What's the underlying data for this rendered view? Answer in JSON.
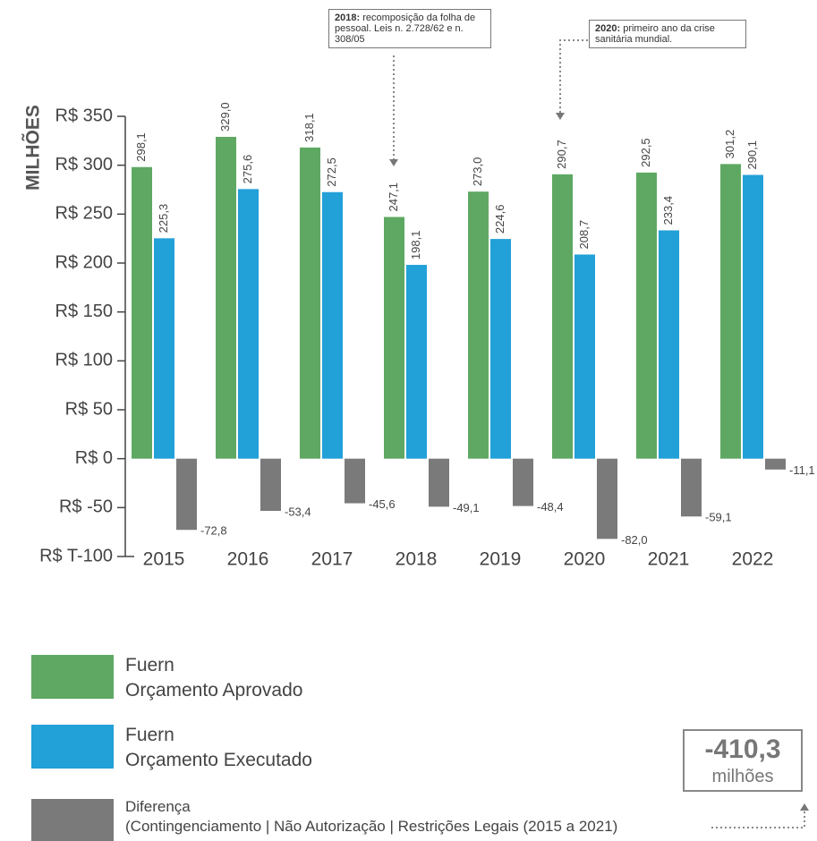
{
  "chart_data": {
    "type": "bar",
    "y_label": "MILHÕES",
    "categories": [
      "2015",
      "2016",
      "2017",
      "2018",
      "2019",
      "2020",
      "2021",
      "2022"
    ],
    "series": [
      {
        "name": "Fuern\nOrçamento Aprovado",
        "color": "#5fa863",
        "values": [
          298.1,
          329.0,
          318.1,
          247.1,
          273.0,
          290.7,
          292.5,
          301.2
        ],
        "value_labels": [
          "298,1",
          "329,0",
          "318,1",
          "247,1",
          "273,0",
          "290,7",
          "292,5",
          "301,2"
        ]
      },
      {
        "name": "Fuern\nOrçamento Executado",
        "color": "#22a0d8",
        "values": [
          225.3,
          275.6,
          272.5,
          198.1,
          224.6,
          208.7,
          233.4,
          290.1
        ],
        "value_labels": [
          "225,3",
          "275,6",
          "272,5",
          "198,1",
          "224,6",
          "208,7",
          "233,4",
          "290,1"
        ]
      },
      {
        "name": "Diferença\n(Contingenciamento | Não Autorização | Restrições Legais (2015 a 2021)",
        "color": "#7a7a7a",
        "values": [
          -72.8,
          -53.4,
          -45.6,
          -49.1,
          -48.4,
          -82.0,
          -59.1,
          -11.1
        ],
        "value_labels": [
          "-72,8",
          "-53,4",
          "-45,6",
          "-49,1",
          "-48,4",
          "-82,0",
          "-59,1",
          "-11,1"
        ]
      }
    ],
    "ylim": [
      -100,
      350
    ],
    "yticks": [
      {
        "value": 350,
        "label": "R$ 350"
      },
      {
        "value": 300,
        "label": "R$ 300"
      },
      {
        "value": 250,
        "label": "R$ 250"
      },
      {
        "value": 200,
        "label": "R$ 200"
      },
      {
        "value": 150,
        "label": "R$ 150"
      },
      {
        "value": 100,
        "label": "R$ 100"
      },
      {
        "value": 50,
        "label": "R$ 50"
      },
      {
        "value": 0,
        "label": "R$ 0"
      },
      {
        "value": -50,
        "label": "R$ -50"
      },
      {
        "value": -100,
        "label": "R$ T-100"
      }
    ],
    "annotations": [
      {
        "label": "2018:",
        "text": " recomposição da folha de pessoal. Leis n. 2.728/62 e n. 308/05"
      },
      {
        "label": "2020:",
        "text": " primeiro ano da crise sanitária mundial."
      }
    ],
    "total": {
      "value": -410.3,
      "label": "-410,3",
      "unit": "milhões"
    }
  }
}
